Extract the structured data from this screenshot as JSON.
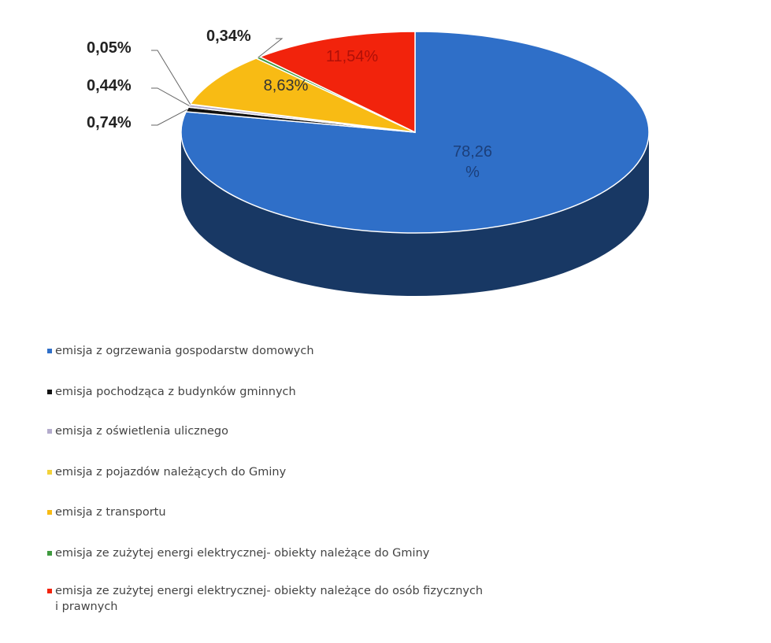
{
  "chart_data": {
    "type": "pie3d",
    "categories": [
      "emisja z ogrzewania gospodarstw domowych",
      "emisja pochodząca z budynków gminnych",
      "emisja z oświetlenia ulicznego",
      "emisja z pojazdów należących do Gminy",
      "emisja z transportu",
      "emisja ze zużytej energi elektrycznej- obiekty należące do Gminy",
      "emisja ze zużytej energi elektrycznej- obiekty należące do osób fizycznych i prawnych"
    ],
    "values": [
      78.26,
      0.74,
      0.44,
      0.05,
      8.63,
      0.34,
      11.54
    ],
    "value_labels": [
      "78,26 %",
      "0,74%",
      "0,44%",
      "0,05%",
      "8,63%",
      "0,34%",
      "11,54%"
    ],
    "colors": [
      "#2f6fc8",
      "#111111",
      "#b3abcc",
      "#f3d23a",
      "#f8bb14",
      "#3f9a3f",
      "#f2230c"
    ],
    "legend": "bottom-left"
  }
}
